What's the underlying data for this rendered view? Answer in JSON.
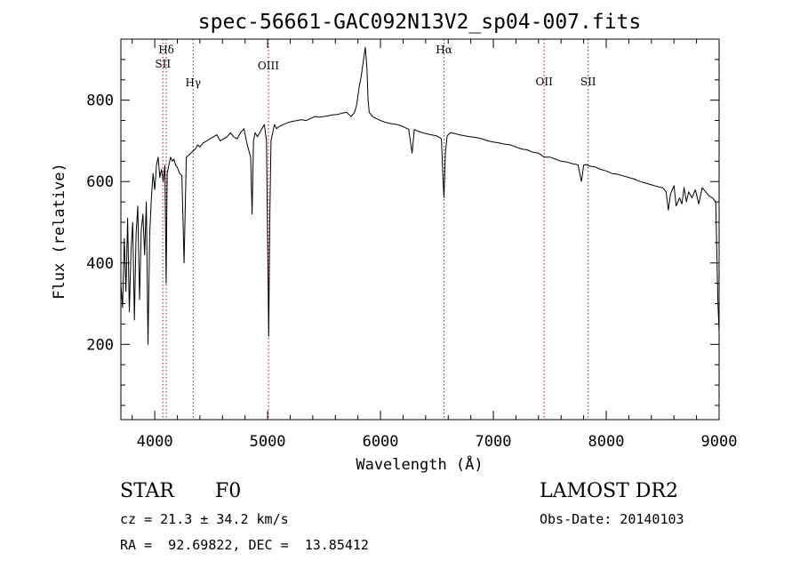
{
  "chart_data": {
    "type": "line",
    "title": "spec-56661-GAC092N13V2_sp04-007.fits",
    "xlabel": "Wavelength (Å)",
    "ylabel": "Flux (relative)",
    "xlim": [
      3700,
      9000
    ],
    "ylim": [
      15,
      950
    ],
    "xticks": [
      4000,
      5000,
      6000,
      7000,
      8000,
      9000
    ],
    "yticks": [
      200,
      400,
      600,
      800
    ],
    "grid": false,
    "color": "#000000",
    "line_color": "#cc0000",
    "lines": [
      {
        "name": "Hδ",
        "x": 4102
      },
      {
        "name": "SII",
        "x": 4072
      },
      {
        "name": "Hγ",
        "x": 4340
      },
      {
        "name": "OIII",
        "x": 5007
      },
      {
        "name": "Hα",
        "x": 6563
      },
      {
        "name": "OII",
        "x": 7450
      },
      {
        "name": "SII",
        "x": 7840
      }
    ],
    "series": [
      {
        "x": [
          3700,
          3715,
          3730,
          3745,
          3760,
          3775,
          3790,
          3805,
          3820,
          3835,
          3850,
          3865,
          3880,
          3895,
          3910,
          3925,
          3940,
          3955,
          3970,
          3985,
          4000,
          4015,
          4030,
          4045,
          4060,
          4075,
          4090,
          4101,
          4110,
          4125,
          4140,
          4155,
          4170,
          4185,
          4200,
          4220,
          4240,
          4260,
          4280,
          4300,
          4320,
          4340,
          4360,
          4380,
          4400,
          4430,
          4460,
          4490,
          4520,
          4550,
          4580,
          4610,
          4640,
          4670,
          4700,
          4730,
          4760,
          4790,
          4820,
          4850,
          4862,
          4875,
          4890,
          4910,
          4930,
          4950,
          4970,
          4990,
          5010,
          5020,
          5030,
          5045,
          5060,
          5080,
          5100,
          5140,
          5180,
          5220,
          5260,
          5300,
          5340,
          5380,
          5420,
          5460,
          5500,
          5540,
          5580,
          5620,
          5660,
          5700,
          5740,
          5770,
          5790,
          5810,
          5830,
          5850,
          5865,
          5880,
          5890,
          5900,
          5915,
          5930,
          5960,
          6000,
          6050,
          6100,
          6150,
          6200,
          6250,
          6280,
          6300,
          6320,
          6350,
          6400,
          6450,
          6500,
          6540,
          6555,
          6563,
          6575,
          6590,
          6620,
          6660,
          6700,
          6750,
          6800,
          6850,
          6900,
          6950,
          7000,
          7050,
          7100,
          7150,
          7200,
          7250,
          7300,
          7350,
          7400,
          7450,
          7500,
          7550,
          7600,
          7650,
          7700,
          7750,
          7780,
          7800,
          7820,
          7850,
          7900,
          7950,
          8000,
          8050,
          8100,
          8150,
          8200,
          8250,
          8300,
          8350,
          8400,
          8450,
          8500,
          8530,
          8550,
          8570,
          8600,
          8620,
          8650,
          8670,
          8690,
          8710,
          8730,
          8760,
          8790,
          8820,
          8850,
          8880,
          8910,
          8940,
          8970,
          8990,
          9000
        ],
        "y": [
          350,
          290,
          460,
          330,
          510,
          280,
          430,
          500,
          260,
          470,
          540,
          310,
          480,
          520,
          420,
          550,
          200,
          470,
          560,
          620,
          580,
          640,
          660,
          610,
          630,
          600,
          640,
          350,
          620,
          640,
          660,
          650,
          655,
          640,
          635,
          620,
          615,
          400,
          660,
          665,
          670,
          675,
          680,
          690,
          685,
          695,
          700,
          705,
          710,
          715,
          700,
          705,
          710,
          720,
          710,
          705,
          720,
          730,
          690,
          660,
          520,
          700,
          720,
          710,
          720,
          730,
          740,
          700,
          220,
          520,
          700,
          720,
          740,
          730,
          735,
          740,
          745,
          748,
          750,
          752,
          750,
          755,
          760,
          758,
          760,
          762,
          764,
          765,
          768,
          770,
          760,
          770,
          790,
          830,
          860,
          900,
          930,
          880,
          800,
          770,
          765,
          760,
          755,
          750,
          745,
          742,
          740,
          735,
          728,
          670,
          728,
          725,
          722,
          718,
          715,
          712,
          705,
          600,
          560,
          670,
          712,
          720,
          718,
          715,
          712,
          710,
          708,
          705,
          700,
          697,
          695,
          692,
          690,
          685,
          680,
          678,
          672,
          670,
          660,
          660,
          655,
          650,
          648,
          644,
          641,
          600,
          640,
          642,
          638,
          636,
          630,
          626,
          620,
          618,
          614,
          610,
          606,
          600,
          596,
          592,
          588,
          585,
          575,
          530,
          570,
          590,
          540,
          560,
          545,
          585,
          550,
          575,
          560,
          580,
          545,
          585,
          575,
          565,
          560,
          550,
          300,
          230
        ]
      }
    ]
  },
  "footer": {
    "object_class": "STAR",
    "subclass": "F0",
    "cz": "cz = 21.3 ± 34.2 km/s",
    "coords": "RA =  92.69822, DEC =  13.85412",
    "survey": "LAMOST DR2",
    "obs_date": "Obs-Date: 20140103"
  }
}
